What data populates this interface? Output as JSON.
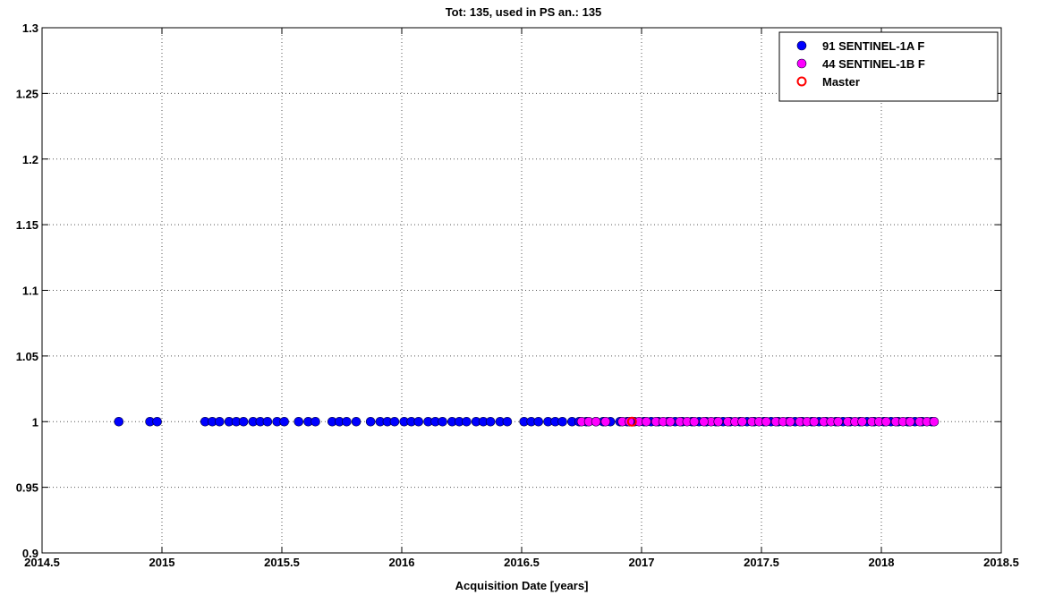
{
  "chart_data": {
    "type": "scatter",
    "title": "Tot: 135, used in PS an.: 135",
    "xlabel": "Acquisition Date [years]",
    "ylabel": "",
    "xlim": [
      2014.5,
      2018.5
    ],
    "ylim": [
      0.9,
      1.3
    ],
    "xticks": [
      2014.5,
      2015,
      2015.5,
      2016,
      2016.5,
      2017,
      2017.5,
      2018,
      2018.5
    ],
    "xtick_labels": [
      "2014.5",
      "2015",
      "2015.5",
      "2016",
      "2016.5",
      "2017",
      "2017.5",
      "2018",
      "2018.5"
    ],
    "yticks": [
      0.9,
      0.95,
      1.0,
      1.05,
      1.1,
      1.15,
      1.2,
      1.25,
      1.3
    ],
    "ytick_labels": [
      "0.9",
      "0.95",
      "1",
      "1.05",
      "1.1",
      "1.15",
      "1.2",
      "1.25",
      "1.3"
    ],
    "grid": true,
    "legend_position": "top-right",
    "series": [
      {
        "name": "91 SENTINEL-1A F",
        "color": "#0000ff",
        "marker": "filled-circle",
        "x": [
          2014.82,
          2014.95,
          2014.98,
          2015.18,
          2015.21,
          2015.24,
          2015.28,
          2015.31,
          2015.34,
          2015.38,
          2015.41,
          2015.44,
          2015.48,
          2015.51,
          2015.57,
          2015.61,
          2015.64,
          2015.71,
          2015.74,
          2015.77,
          2015.81,
          2015.87,
          2015.91,
          2015.94,
          2015.97,
          2016.01,
          2016.04,
          2016.07,
          2016.11,
          2016.14,
          2016.17,
          2016.21,
          2016.24,
          2016.27,
          2016.31,
          2016.34,
          2016.37,
          2016.41,
          2016.44,
          2016.51,
          2016.54,
          2016.57,
          2016.61,
          2016.64,
          2016.67,
          2016.71,
          2016.74,
          2016.77,
          2016.81,
          2016.84,
          2016.87,
          2016.91,
          2016.94,
          2016.97,
          2017.01,
          2017.04,
          2017.07,
          2017.11,
          2017.14,
          2017.17,
          2017.21,
          2017.24,
          2017.27,
          2017.31,
          2017.34,
          2017.37,
          2017.41,
          2017.44,
          2017.47,
          2017.51,
          2017.54,
          2017.57,
          2017.61,
          2017.64,
          2017.67,
          2017.71,
          2017.74,
          2017.77,
          2017.81,
          2017.84,
          2017.87,
          2017.91,
          2017.94,
          2017.97,
          2018.01,
          2018.04,
          2018.07,
          2018.11,
          2018.14,
          2018.17,
          2018.21
        ],
        "y": [
          1,
          1,
          1,
          1,
          1,
          1,
          1,
          1,
          1,
          1,
          1,
          1,
          1,
          1,
          1,
          1,
          1,
          1,
          1,
          1,
          1,
          1,
          1,
          1,
          1,
          1,
          1,
          1,
          1,
          1,
          1,
          1,
          1,
          1,
          1,
          1,
          1,
          1,
          1,
          1,
          1,
          1,
          1,
          1,
          1,
          1,
          1,
          1,
          1,
          1,
          1,
          1,
          1,
          1,
          1,
          1,
          1,
          1,
          1,
          1,
          1,
          1,
          1,
          1,
          1,
          1,
          1,
          1,
          1,
          1,
          1,
          1,
          1,
          1,
          1,
          1,
          1,
          1,
          1,
          1,
          1,
          1,
          1,
          1,
          1,
          1,
          1,
          1,
          1,
          1,
          1
        ]
      },
      {
        "name": "44 SENTINEL-1B F",
        "color": "#ff00ff",
        "marker": "filled-circle",
        "x": [
          2016.75,
          2016.78,
          2016.81,
          2016.85,
          2016.92,
          2016.99,
          2017.02,
          2017.06,
          2017.09,
          2017.12,
          2017.16,
          2017.19,
          2017.29,
          2017.32,
          2017.36,
          2017.39,
          2017.42,
          2017.46,
          2017.49,
          2017.52,
          2017.56,
          2017.59,
          2017.62,
          2017.66,
          2017.69,
          2017.72,
          2017.76,
          2017.79,
          2017.82,
          2017.86,
          2017.89,
          2017.92,
          2017.96,
          2017.99,
          2018.02,
          2018.06,
          2018.09,
          2018.12,
          2018.16,
          2018.19,
          2018.22,
          2017.26,
          2016.95,
          2017.22
        ],
        "y": [
          1,
          1,
          1,
          1,
          1,
          1,
          1,
          1,
          1,
          1,
          1,
          1,
          1,
          1,
          1,
          1,
          1,
          1,
          1,
          1,
          1,
          1,
          1,
          1,
          1,
          1,
          1,
          1,
          1,
          1,
          1,
          1,
          1,
          1,
          1,
          1,
          1,
          1,
          1,
          1,
          1,
          1,
          1,
          1
        ]
      },
      {
        "name": "Master",
        "color": "#ff0000",
        "marker": "open-circle",
        "x": [
          2016.96
        ],
        "y": [
          1
        ]
      }
    ]
  }
}
